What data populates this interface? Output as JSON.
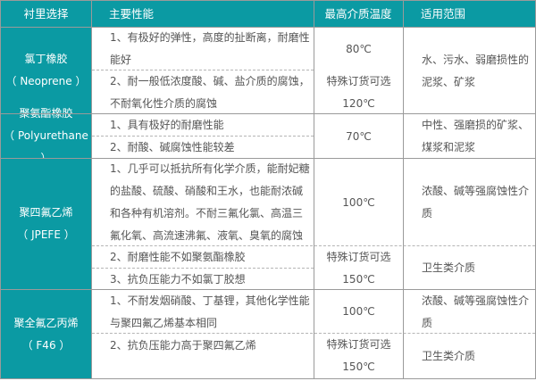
{
  "header": {
    "col1": "衬里选择",
    "col2": "主要性能",
    "col3": "最高介质温度",
    "col4": "适用范围"
  },
  "rows": [
    {
      "name": "氯丁橡胶",
      "en": "（ Neoprene ）",
      "props": [
        "1、有极好的弹性，高度的扯断离，耐磨性\n能好",
        "2、耐一般低浓度酸、碱、盐介质的腐蚀，\n不耐氧化性介质的腐蚀"
      ],
      "temps": [
        "80℃",
        "特殊订货可选\n120℃"
      ],
      "uses": [
        "水、污水、弱磨损性的\n泥浆、矿浆"
      ]
    },
    {
      "name": "聚氨酯橡胶",
      "en": "（ Polyurethane ）",
      "props": [
        "1、具有极好的耐磨性能",
        "2、耐酸、碱腐蚀性能较差"
      ],
      "temps": [
        "70℃"
      ],
      "uses": [
        "中性、强磨损的矿浆、\n煤浆和泥浆"
      ]
    },
    {
      "name": "聚四氟乙烯",
      "en": "（ JPEFE ）",
      "props": [
        "1、几乎可以抵抗所有化学介质，能耐妃糖\n的盐酸、硫酸、硝酸和王水，也能耐浓碱\n和各种有机溶剂。不耐三氟化氯、高温三\n氟化氧、高流速沸氟、液氧、臭氧的腐蚀",
        "2、耐磨性能不如聚氨酯橡胶",
        "3、抗负压能力不如氯丁胶想"
      ],
      "temps": [
        "100℃",
        "特殊订货可选\n150℃"
      ],
      "uses": [
        "浓酸、碱等强腐蚀性介\n质",
        "卫生类介质"
      ]
    },
    {
      "name": "聚全氟乙丙烯",
      "en": "（ F46 ）",
      "props": [
        "1、不耐发烟硝酸、丁基锂，其他化学性能\n与聚四氟乙烯基本相同",
        "2、抗负压能力高于聚四氟乙烯"
      ],
      "temps": [
        "100℃",
        "特殊订货可选\n150℃"
      ],
      "uses": [
        "浓酸、碱等强腐蚀性介\n质",
        "卫生类介质"
      ]
    }
  ],
  "colors": {
    "header_bg": "#0b9aa3",
    "text": "#555555",
    "border": "#9a9a9a"
  }
}
